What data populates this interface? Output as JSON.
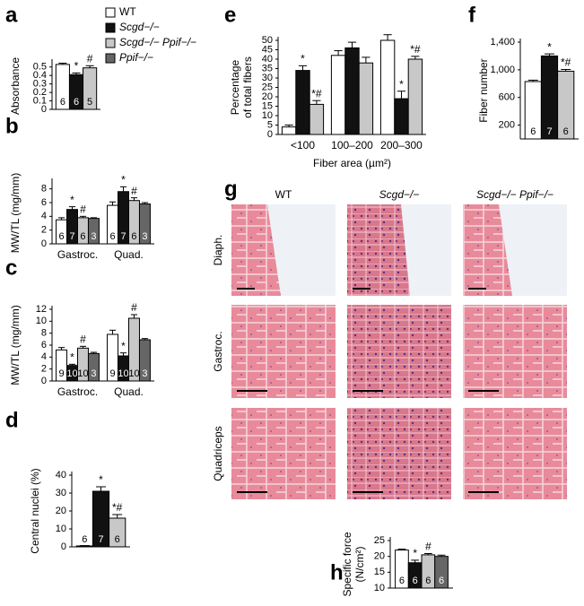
{
  "chart_data": [
    {
      "type": "bar",
      "panel": "a",
      "ylabel": [
        "Absorbance"
      ],
      "ylim": [
        0,
        0.55
      ],
      "yticks": [
        0,
        0.1,
        0.2,
        0.3,
        0.4,
        0.5
      ],
      "series": [
        {
          "name": "WT",
          "color": "#ffffff",
          "values": [
            0.53
          ],
          "errors": [
            0.015
          ],
          "n": [
            "6"
          ],
          "marks": [
            null
          ]
        },
        {
          "name": "Scgd−/−",
          "color": "#111111",
          "values": [
            0.41
          ],
          "errors": [
            0.02
          ],
          "n": [
            "6"
          ],
          "marks": [
            "*"
          ]
        },
        {
          "name": "Scgd−/− Ppif−/−",
          "color": "#c8c8c8",
          "values": [
            0.49
          ],
          "errors": [
            0.025
          ],
          "n": [
            "5"
          ],
          "marks": [
            "#"
          ]
        }
      ]
    },
    {
      "type": "bar",
      "panel": "b",
      "ylabel": [
        "MW/TL (mg/mm)"
      ],
      "ylim": [
        0,
        9
      ],
      "yticks": [
        0,
        2,
        4,
        6,
        8
      ],
      "categories": [
        "Gastroc.",
        "Quad."
      ],
      "series": [
        {
          "name": "WT",
          "color": "#ffffff",
          "values": [
            3.5,
            5.6
          ],
          "errors": [
            0.3,
            0.5
          ],
          "n": [
            "6",
            "6"
          ],
          "marks": [
            null,
            null
          ]
        },
        {
          "name": "Scgd−/−",
          "color": "#111111",
          "values": [
            5.0,
            7.6
          ],
          "errors": [
            0.4,
            0.7
          ],
          "n": [
            "7",
            "7"
          ],
          "marks": [
            "*",
            "*"
          ]
        },
        {
          "name": "Scgd−/− Ppif−/−",
          "color": "#c8c8c8",
          "values": [
            3.8,
            6.3
          ],
          "errors": [
            0.2,
            0.4
          ],
          "n": [
            "6",
            "6"
          ],
          "marks": [
            "#",
            "#"
          ]
        },
        {
          "name": "Ppif−/−",
          "color": "#666666",
          "values": [
            3.7,
            5.8
          ],
          "errors": [
            0.1,
            0.2
          ],
          "n": [
            "3",
            "3"
          ],
          "marks": [
            null,
            null
          ]
        }
      ]
    },
    {
      "type": "bar",
      "panel": "c",
      "ylabel": [
        "MW/TL (mg/mm)"
      ],
      "ylim": [
        0,
        12
      ],
      "yticks": [
        0,
        2,
        4,
        6,
        8,
        10,
        12
      ],
      "categories": [
        "Gastroc.",
        "Quad."
      ],
      "series": [
        {
          "name": "WT",
          "color": "#ffffff",
          "values": [
            5.2,
            7.8
          ],
          "errors": [
            0.4,
            0.7
          ],
          "n": [
            "9",
            "9"
          ],
          "marks": [
            null,
            null
          ]
        },
        {
          "name": "Scgd−/−",
          "color": "#111111",
          "values": [
            2.6,
            4.2
          ],
          "errors": [
            0.2,
            0.5
          ],
          "n": [
            "10",
            "10"
          ],
          "marks": [
            "*",
            "*"
          ]
        },
        {
          "name": "Scgd−/− Ppif−/−",
          "color": "#c8c8c8",
          "values": [
            5.5,
            10.5
          ],
          "errors": [
            0.3,
            0.6
          ],
          "n": [
            "10",
            "10"
          ],
          "marks": [
            "#",
            "#"
          ]
        },
        {
          "name": "Ppif−/−",
          "color": "#666666",
          "values": [
            4.6,
            6.9
          ],
          "errors": [
            0.2,
            0.2
          ],
          "n": [
            "3",
            "3"
          ],
          "marks": [
            null,
            null
          ]
        }
      ]
    },
    {
      "type": "bar",
      "panel": "d",
      "ylabel": [
        "Central nuclei (%)"
      ],
      "ylim": [
        0,
        40
      ],
      "yticks": [
        0,
        10,
        20,
        30,
        40
      ],
      "series": [
        {
          "name": "WT",
          "color": "#ffffff",
          "values": [
            0.5
          ],
          "errors": [
            0.2
          ],
          "n": [
            "6"
          ],
          "marks": [
            null
          ]
        },
        {
          "name": "Scgd−/−",
          "color": "#111111",
          "values": [
            31
          ],
          "errors": [
            2.5
          ],
          "n": [
            "7"
          ],
          "marks": [
            "*"
          ]
        },
        {
          "name": "Scgd−/− Ppif−/−",
          "color": "#c8c8c8",
          "values": [
            16
          ],
          "errors": [
            2
          ],
          "n": [
            "6"
          ],
          "marks": [
            "*#"
          ]
        }
      ]
    },
    {
      "type": "bar",
      "panel": "e",
      "ylabel": [
        "Percentage",
        "of total fibers"
      ],
      "xlabel": "Fiber area (µm²)",
      "ylim": [
        0,
        50
      ],
      "yticks": [
        0,
        5,
        10,
        15,
        20,
        25,
        30,
        35,
        40,
        45,
        50
      ],
      "categories": [
        "<100",
        "100–200",
        "200–300"
      ],
      "series": [
        {
          "name": "WT",
          "color": "#ffffff",
          "values": [
            4,
            42,
            50
          ],
          "errors": [
            1,
            2.5,
            3
          ],
          "marks": [
            null,
            null,
            null
          ]
        },
        {
          "name": "Scgd−/−",
          "color": "#111111",
          "values": [
            34,
            46,
            19
          ],
          "errors": [
            2.5,
            3,
            4
          ],
          "marks": [
            "*",
            null,
            "*"
          ]
        },
        {
          "name": "Scgd−/− Ppif−/−",
          "color": "#c8c8c8",
          "values": [
            16,
            38,
            40
          ],
          "errors": [
            2,
            3,
            1.5
          ],
          "marks": [
            "*#",
            null,
            "*#"
          ]
        }
      ]
    },
    {
      "type": "bar",
      "panel": "f",
      "ylabel": [
        "Fiber number"
      ],
      "ylim": [
        0,
        1400
      ],
      "yticks": [
        200,
        600,
        {
          "value": 1000,
          "label": "1,000"
        },
        {
          "value": 1400,
          "label": "1,400"
        }
      ],
      "series": [
        {
          "name": "WT",
          "color": "#ffffff",
          "values": [
            830
          ],
          "errors": [
            20
          ],
          "n": [
            "6"
          ],
          "marks": [
            null
          ]
        },
        {
          "name": "Scgd−/−",
          "color": "#111111",
          "values": [
            1200
          ],
          "errors": [
            30
          ],
          "n": [
            "7"
          ],
          "marks": [
            "*"
          ]
        },
        {
          "name": "Scgd−/− Ppif−/−",
          "color": "#c8c8c8",
          "values": [
            980
          ],
          "errors": [
            25
          ],
          "n": [
            "6"
          ],
          "marks": [
            "*#"
          ]
        }
      ]
    },
    {
      "type": "bar",
      "panel": "h",
      "ylabel": [
        "Specific force",
        "(N/cm²)"
      ],
      "ylim": [
        10,
        25
      ],
      "yticks": [
        10,
        15,
        20,
        25
      ],
      "series": [
        {
          "name": "WT",
          "color": "#ffffff",
          "values": [
            22
          ],
          "errors": [
            0.3
          ],
          "n": [
            "6"
          ],
          "marks": [
            null
          ]
        },
        {
          "name": "Scgd−/−",
          "color": "#111111",
          "values": [
            18
          ],
          "errors": [
            0.8
          ],
          "n": [
            "6"
          ],
          "marks": [
            "*"
          ]
        },
        {
          "name": "Scgd−/− Ppif−/−",
          "color": "#c8c8c8",
          "values": [
            20.5
          ],
          "errors": [
            0.4
          ],
          "n": [
            "6"
          ],
          "marks": [
            "#"
          ]
        },
        {
          "name": "Ppif−/−",
          "color": "#666666",
          "values": [
            20
          ],
          "errors": [
            0.4
          ],
          "n": [
            "6"
          ],
          "marks": [
            null
          ]
        }
      ]
    }
  ],
  "image_panel": {
    "panel": "g",
    "columns": [
      "WT",
      "Scgd−/−",
      "Scgd−/− Ppif−/−"
    ],
    "rows": [
      "Diaph.",
      "Gastroc.",
      "Quadriceps"
    ]
  }
}
